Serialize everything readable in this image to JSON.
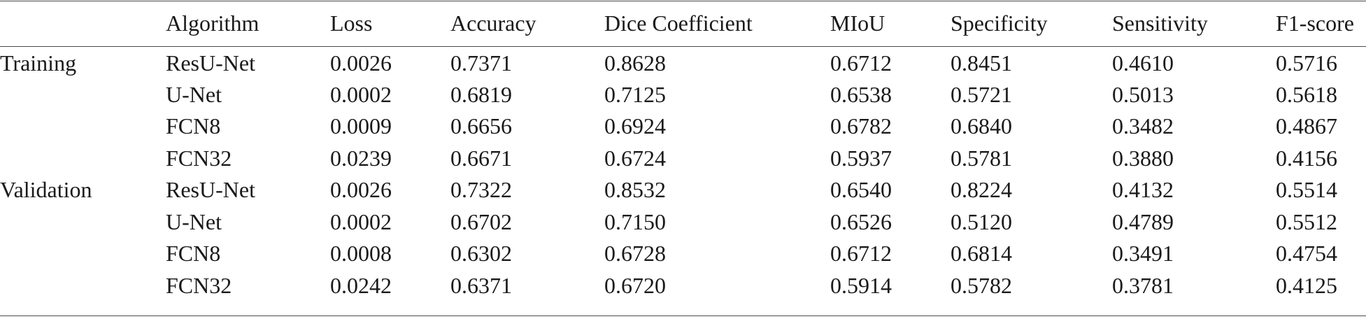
{
  "table": {
    "headers": [
      "",
      "Algorithm",
      "Loss",
      "Accuracy",
      "Dice Coefficient",
      "MIoU",
      "Specificity",
      "Sensitivity",
      "F1-score"
    ],
    "rows": [
      [
        "Training",
        "ResU-Net",
        "0.0026",
        "0.7371",
        "0.8628",
        "0.6712",
        "0.8451",
        "0.4610",
        "0.5716"
      ],
      [
        "",
        "U-Net",
        "0.0002",
        "0.6819",
        "0.7125",
        "0.6538",
        "0.5721",
        "0.5013",
        "0.5618"
      ],
      [
        "",
        "FCN8",
        "0.0009",
        "0.6656",
        "0.6924",
        "0.6782",
        "0.6840",
        "0.3482",
        "0.4867"
      ],
      [
        "",
        "FCN32",
        "0.0239",
        "0.6671",
        "0.6724",
        "0.5937",
        "0.5781",
        "0.3880",
        "0.4156"
      ],
      [
        "Validation",
        "ResU-Net",
        "0.0026",
        "0.7322",
        "0.8532",
        "0.6540",
        "0.8224",
        "0.4132",
        "0.5514"
      ],
      [
        "",
        "U-Net",
        "0.0002",
        "0.6702",
        "0.7150",
        "0.6526",
        "0.5120",
        "0.4789",
        "0.5512"
      ],
      [
        "",
        "FCN8",
        "0.0008",
        "0.6302",
        "0.6728",
        "0.6712",
        "0.6814",
        "0.3491",
        "0.4754"
      ],
      [
        "",
        "FCN32",
        "0.0242",
        "0.6371",
        "0.6720",
        "0.5914",
        "0.5782",
        "0.3781",
        "0.4125"
      ]
    ]
  }
}
